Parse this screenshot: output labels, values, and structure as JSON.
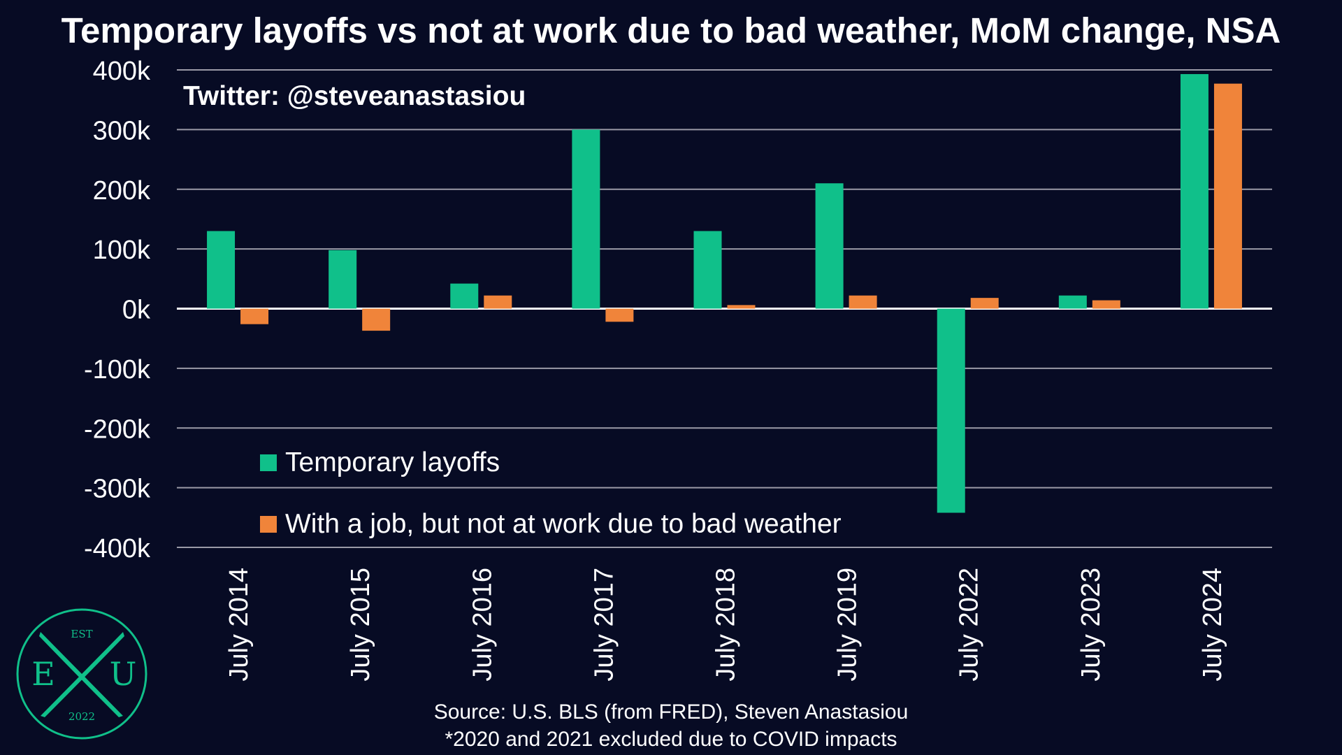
{
  "colors": {
    "background": "#070b24",
    "series_temporary": "#10c08a",
    "series_weather": "#f0843a",
    "grid": "#9a9aa6",
    "logo": "#10c08a"
  },
  "watermark": "Twitter: @steveanastasiou",
  "source_line1": "Source: U.S. BLS (from FRED), Steven Anastasiou",
  "source_line2": "*2020 and 2021 excluded due to COVID impacts",
  "logo": {
    "top": "EST",
    "left": "E",
    "right": "U",
    "bottom": "2022"
  },
  "chart_data": {
    "type": "bar",
    "title": "Temporary layoffs vs not at work due to bad weather, MoM change, NSA",
    "xlabel": "",
    "ylabel": "",
    "ylim": [
      -400000,
      400000
    ],
    "yticks": [
      400000,
      300000,
      200000,
      100000,
      0,
      -100000,
      -200000,
      -300000,
      -400000
    ],
    "ytick_labels": [
      "400k",
      "300k",
      "200k",
      "100k",
      "0k",
      "-100k",
      "-200k",
      "-300k",
      "-400k"
    ],
    "grid": true,
    "legend_position": "bottom-left",
    "categories": [
      "July 2014",
      "July 2015",
      "July 2016",
      "July 2017",
      "July 2018",
      "July 2019",
      "July 2022",
      "July 2023",
      "July 2024"
    ],
    "series": [
      {
        "name": "Temporary layoffs",
        "values": [
          130000,
          98000,
          42000,
          300000,
          130000,
          210000,
          -342000,
          22000,
          393000
        ]
      },
      {
        "name": "With a job, but not at work due to bad weather",
        "values": [
          -26000,
          -37000,
          22000,
          -22000,
          6000,
          22000,
          18000,
          14000,
          377000
        ]
      }
    ]
  }
}
